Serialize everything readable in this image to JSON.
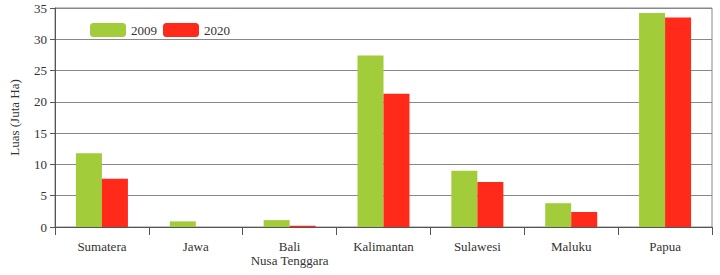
{
  "chart_data": {
    "type": "bar",
    "y_label": "Luas (Juta Ha)",
    "categories": [
      "Sumatera",
      "Jawa",
      "Bali\nNusa Tenggara",
      "Kalimantan",
      "Sulawesi",
      "Maluku",
      "Papua"
    ],
    "series": [
      {
        "name": "2009",
        "color": "#a2cc3a",
        "values": [
          11.8,
          0.9,
          1.1,
          27.4,
          9.0,
          3.8,
          34.2
        ]
      },
      {
        "name": "2020",
        "color": "#ff2a1a",
        "values": [
          7.7,
          0,
          0.2,
          21.3,
          7.2,
          2.4,
          33.5
        ]
      }
    ],
    "ylim": [
      0,
      35
    ],
    "yticks": [
      0,
      5,
      10,
      15,
      20,
      25,
      30,
      35
    ],
    "grid": true,
    "legend": "upper left"
  }
}
